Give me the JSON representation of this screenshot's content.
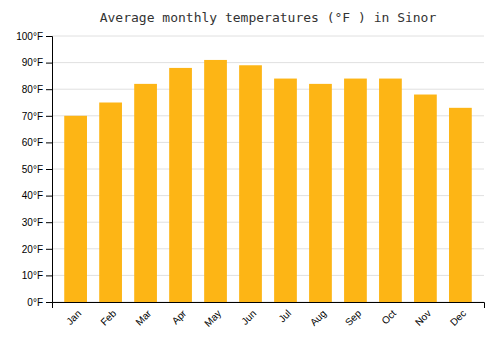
{
  "chart_data": {
    "type": "bar",
    "title": "Average monthly temperatures (°F ) in Sinor",
    "categories": [
      "Jan",
      "Feb",
      "Mar",
      "Apr",
      "May",
      "Jun",
      "Jul",
      "Aug",
      "Sep",
      "Oct",
      "Nov",
      "Dec"
    ],
    "values": [
      70,
      75,
      82,
      88,
      91,
      89,
      84,
      82,
      84,
      84,
      78,
      73
    ],
    "color": "#FDB515",
    "ylim": [
      0,
      100
    ],
    "yticks": [
      {
        "value": 0,
        "label": "0°F"
      },
      {
        "value": 10,
        "label": "10°F"
      },
      {
        "value": 20,
        "label": "20°F"
      },
      {
        "value": 30,
        "label": "30°F"
      },
      {
        "value": 40,
        "label": "40°F"
      },
      {
        "value": 50,
        "label": "50°F"
      },
      {
        "value": 60,
        "label": "60°F"
      },
      {
        "value": 70,
        "label": "70°F"
      },
      {
        "value": 80,
        "label": "80°F"
      },
      {
        "value": 90,
        "label": "90°F"
      },
      {
        "value": 100,
        "label": "100°F"
      }
    ],
    "grid": true
  }
}
